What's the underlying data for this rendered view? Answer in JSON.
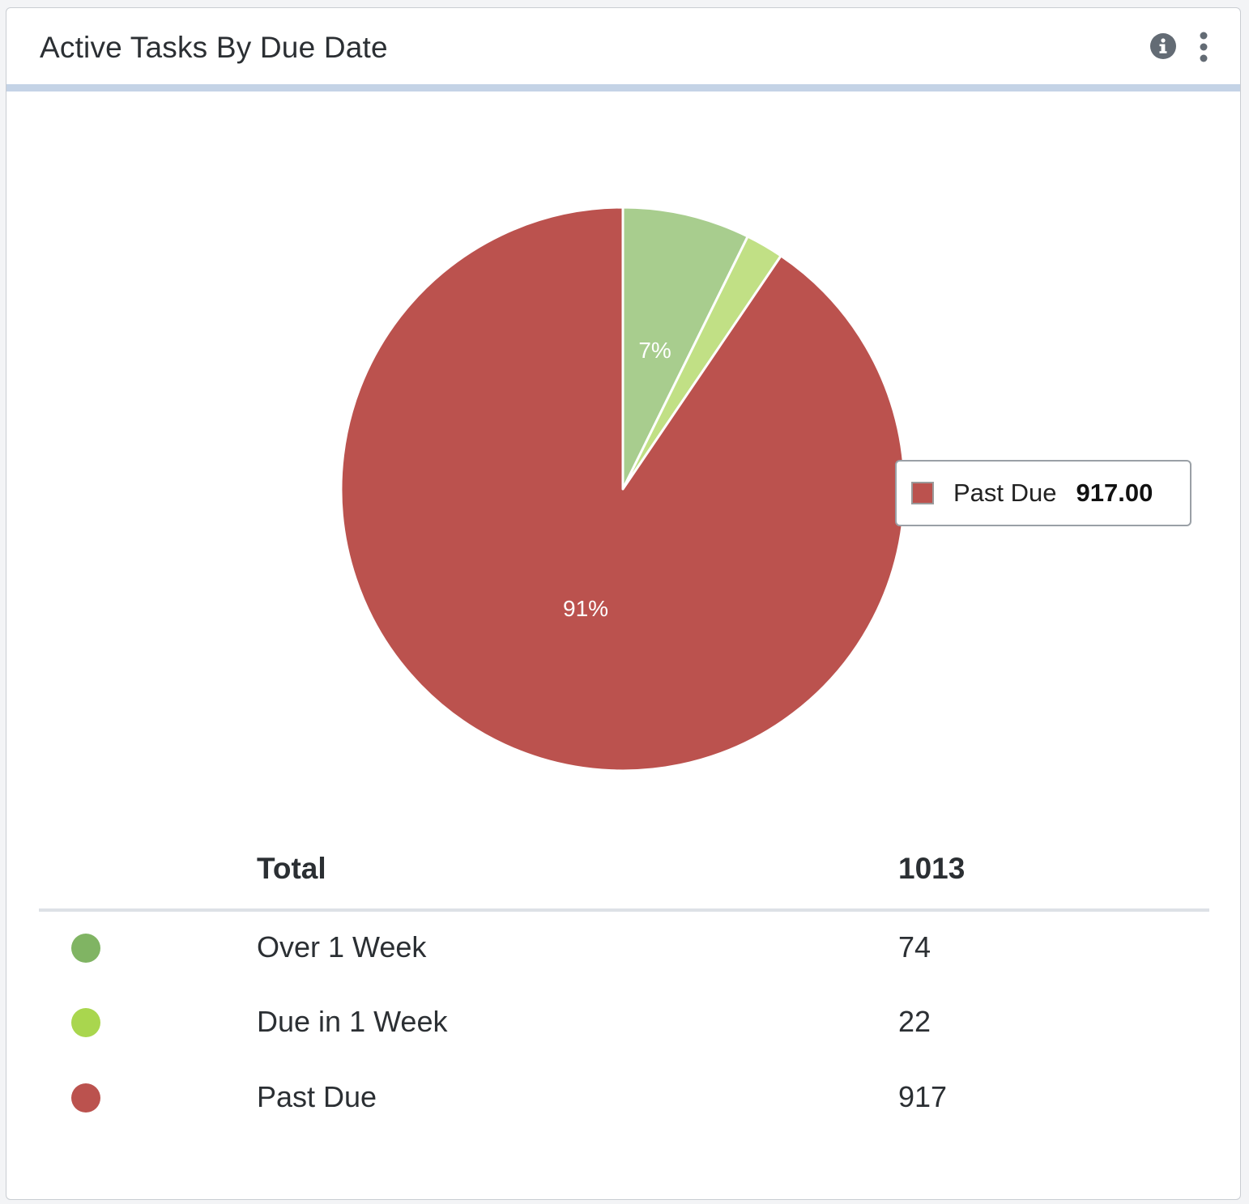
{
  "card": {
    "title": "Active Tasks By Due Date"
  },
  "header_icons": [
    "info-icon",
    "more-vertical-icon"
  ],
  "chart_data": {
    "type": "pie",
    "title": "Active Tasks By Due Date",
    "slices": [
      {
        "name": "Over 1 Week",
        "value": 74,
        "label": "7%",
        "color": "#a8cd8e"
      },
      {
        "name": "Due in 1 Week",
        "value": 22,
        "label": "",
        "color": "#c1e085"
      },
      {
        "name": "Past Due",
        "value": 917,
        "label": "91%",
        "color": "#bb524e"
      }
    ],
    "start_angle_deg": 0,
    "direction": "clockwise"
  },
  "tooltip": {
    "label": "Past Due",
    "value": "917.00",
    "color": "#bb524e"
  },
  "table": {
    "header_label": "Total",
    "header_value": "1013",
    "rows": [
      {
        "label": "Over 1 Week",
        "value": "74",
        "color": "#80b463"
      },
      {
        "label": "Due in 1 Week",
        "value": "22",
        "color": "#a9d64e"
      },
      {
        "label": "Past Due",
        "value": "917",
        "color": "#bb524e"
      }
    ]
  }
}
